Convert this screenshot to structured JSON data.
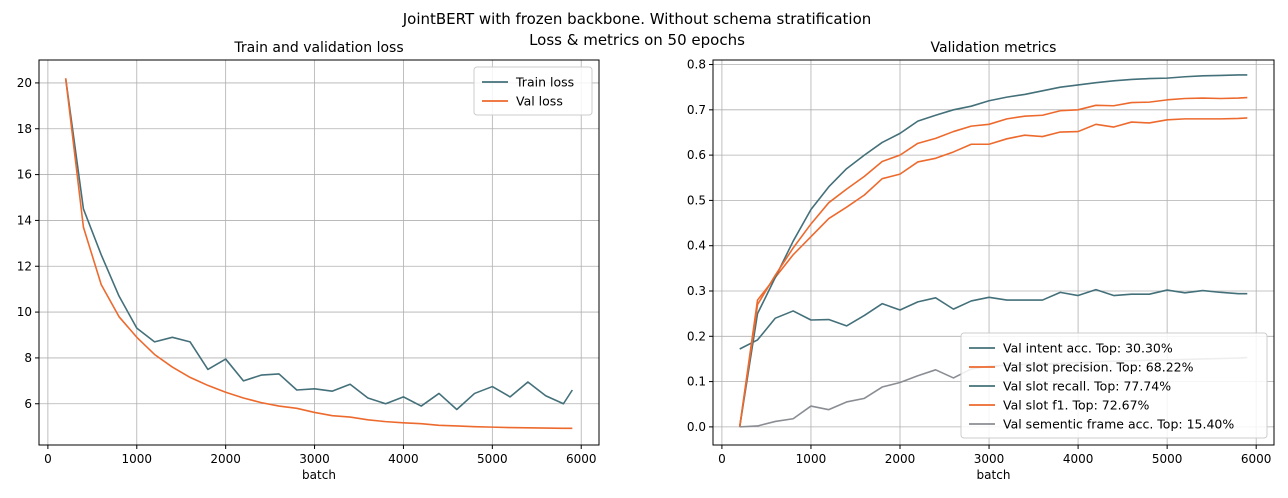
{
  "figure": {
    "suptitle_line1": "JointBERT with frozen backbone. Without schema stratification",
    "suptitle_line2": "Loss & metrics on 50 epochs"
  },
  "chart_data": [
    {
      "type": "line",
      "title": "Train and validation loss",
      "xlabel": "batch",
      "ylabel": "",
      "xlim": [
        -100,
        6200
      ],
      "ylim": [
        4.2,
        21.0
      ],
      "xticks": [
        0,
        1000,
        2000,
        3000,
        4000,
        5000,
        6000
      ],
      "yticks": [
        6,
        8,
        10,
        12,
        14,
        16,
        18,
        20
      ],
      "legend_position": "top-right",
      "x": [
        200,
        400,
        600,
        800,
        1000,
        1200,
        1400,
        1600,
        1800,
        2000,
        2200,
        2400,
        2600,
        2800,
        3000,
        3200,
        3400,
        3600,
        3800,
        4000,
        4200,
        4400,
        4600,
        4800,
        5000,
        5200,
        5400,
        5600,
        5800,
        5900
      ],
      "series": [
        {
          "name": "Train loss",
          "color": "#44707a",
          "values": [
            20.2,
            14.5,
            12.5,
            10.7,
            9.3,
            8.7,
            8.9,
            8.7,
            7.5,
            7.95,
            7.0,
            7.25,
            7.3,
            6.6,
            6.65,
            6.55,
            6.85,
            6.25,
            6.0,
            6.3,
            5.9,
            6.45,
            5.75,
            6.45,
            6.75,
            6.3,
            6.95,
            6.35,
            6.0,
            6.6
          ]
        },
        {
          "name": "Val loss",
          "color": "#ed6a2e",
          "values": [
            20.2,
            13.7,
            11.2,
            9.8,
            8.9,
            8.15,
            7.6,
            7.15,
            6.8,
            6.5,
            6.25,
            6.05,
            5.9,
            5.8,
            5.62,
            5.48,
            5.42,
            5.3,
            5.22,
            5.17,
            5.13,
            5.06,
            5.03,
            5.0,
            4.98,
            4.96,
            4.95,
            4.94,
            4.93,
            4.93
          ]
        }
      ]
    },
    {
      "type": "line",
      "title": "Validation metrics",
      "xlabel": "batch",
      "ylabel": "",
      "xlim": [
        -100,
        6200
      ],
      "ylim": [
        -0.04,
        0.81
      ],
      "xticks": [
        0,
        1000,
        2000,
        3000,
        4000,
        5000,
        6000
      ],
      "yticks": [
        0.0,
        0.1,
        0.2,
        0.3,
        0.4,
        0.5,
        0.6,
        0.7,
        0.8
      ],
      "legend_position": "bottom-right",
      "x": [
        200,
        400,
        600,
        800,
        1000,
        1200,
        1400,
        1600,
        1800,
        2000,
        2200,
        2400,
        2600,
        2800,
        3000,
        3200,
        3400,
        3600,
        3800,
        4000,
        4200,
        4400,
        4600,
        4800,
        5000,
        5200,
        5400,
        5600,
        5800,
        5900
      ],
      "series": [
        {
          "name": "Val intent acc. Top: 30.30%",
          "color": "#44707a",
          "values": [
            0.172,
            0.192,
            0.24,
            0.256,
            0.236,
            0.237,
            0.223,
            0.246,
            0.272,
            0.258,
            0.276,
            0.285,
            0.26,
            0.278,
            0.286,
            0.28,
            0.28,
            0.28,
            0.297,
            0.29,
            0.303,
            0.29,
            0.293,
            0.293,
            0.302,
            0.296,
            0.301,
            0.297,
            0.294,
            0.294
          ]
        },
        {
          "name": "Val slot precision. Top: 68.22%",
          "color": "#ed6a2e",
          "values": [
            0.0,
            0.28,
            0.33,
            0.38,
            0.42,
            0.46,
            0.485,
            0.512,
            0.548,
            0.558,
            0.585,
            0.593,
            0.607,
            0.624,
            0.624,
            0.636,
            0.644,
            0.641,
            0.651,
            0.652,
            0.668,
            0.662,
            0.673,
            0.671,
            0.678,
            0.68,
            0.68,
            0.68,
            0.681,
            0.682
          ]
        },
        {
          "name": "Val slot recall. Top: 77.74%",
          "color": "#44707a",
          "values": [
            0.0,
            0.25,
            0.33,
            0.41,
            0.48,
            0.53,
            0.57,
            0.6,
            0.628,
            0.648,
            0.675,
            0.688,
            0.7,
            0.708,
            0.72,
            0.728,
            0.734,
            0.742,
            0.75,
            0.755,
            0.76,
            0.764,
            0.767,
            0.769,
            0.77,
            0.773,
            0.775,
            0.776,
            0.777,
            0.777
          ]
        },
        {
          "name": "Val slot f1. Top: 72.67%",
          "color": "#ed6a2e",
          "values": [
            0.0,
            0.27,
            0.335,
            0.395,
            0.448,
            0.495,
            0.525,
            0.553,
            0.586,
            0.6,
            0.626,
            0.637,
            0.652,
            0.664,
            0.668,
            0.68,
            0.686,
            0.688,
            0.698,
            0.7,
            0.71,
            0.709,
            0.716,
            0.717,
            0.722,
            0.725,
            0.726,
            0.725,
            0.726,
            0.727
          ]
        },
        {
          "name": "Val sementic frame acc. Top: 15.40%",
          "color": "#8a8d93",
          "values": [
            0.0,
            0.002,
            0.012,
            0.018,
            0.046,
            0.038,
            0.055,
            0.063,
            0.088,
            0.098,
            0.113,
            0.126,
            0.108,
            0.128,
            0.134,
            0.136,
            0.138,
            0.139,
            0.14,
            0.142,
            0.144,
            0.145,
            0.146,
            0.147,
            0.148,
            0.149,
            0.15,
            0.151,
            0.152,
            0.153
          ]
        }
      ]
    }
  ]
}
